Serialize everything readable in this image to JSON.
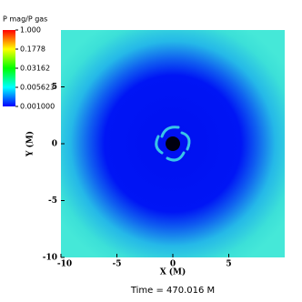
{
  "chart_data": {
    "type": "heatmap",
    "title": "Time = 470.016 M",
    "xlabel": "X (M)",
    "ylabel": "Y (M)",
    "xlim": [
      -10,
      10
    ],
    "ylim": [
      -10,
      10
    ],
    "xticks": [
      -10,
      -5,
      0,
      5
    ],
    "yticks": [
      -10,
      -5,
      0,
      5
    ],
    "colorbar": {
      "label": "P mag/P gas",
      "scale": "log",
      "lim": [
        0.001,
        1
      ],
      "ticks": [
        {
          "value": 1,
          "label": "1.000"
        },
        {
          "value": 0.1778,
          "label": "0.1778"
        },
        {
          "value": 0.03162,
          "label": "0.03162"
        },
        {
          "value": 0.005623,
          "label": "0.005623"
        },
        {
          "value": 0.001,
          "label": "0.001000"
        }
      ],
      "colors": [
        "#ff0000",
        "#ffff00",
        "#00ff00",
        "#00ffff",
        "#0000ff"
      ]
    }
  }
}
